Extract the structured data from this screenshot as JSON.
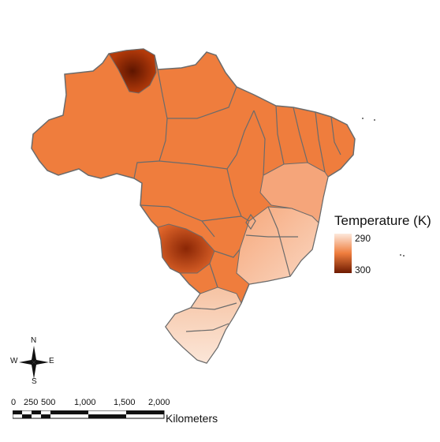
{
  "legend": {
    "title": "Temperature (K)",
    "min_label": "290",
    "max_label": "300",
    "color_low": "#fde9dc",
    "color_mid": "#ef7d3d",
    "color_high": "#6e1a00"
  },
  "compass": {
    "n": "N",
    "s": "S",
    "e": "E",
    "w": "W"
  },
  "scale": {
    "ticks": [
      "0",
      "250",
      "500",
      "1,000",
      "1,500",
      "2,000"
    ],
    "unit": "Kilometers"
  },
  "colors": {
    "base_orange": "#ef7d3d",
    "border": "#6b6b6b",
    "dark": "#7a2205",
    "light": "#f9d3bc"
  }
}
